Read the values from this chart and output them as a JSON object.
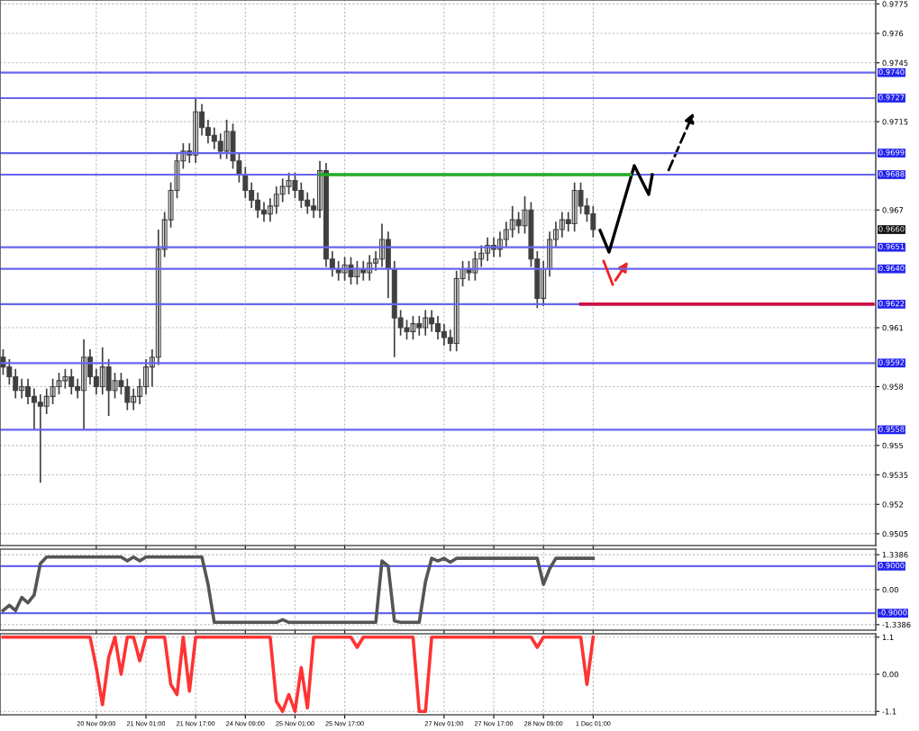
{
  "chart_data": [
    {
      "type": "candlestick",
      "color": "#404040",
      "grid": true,
      "tick_labels": "y",
      "categories": [
        null,
        null,
        null,
        null,
        null,
        null,
        null,
        null,
        null,
        null,
        null,
        null,
        null,
        null,
        null,
        null,
        null,
        null,
        null,
        null,
        null,
        null,
        null,
        null,
        null,
        null,
        null,
        null,
        null,
        null,
        null,
        null,
        null,
        null,
        null,
        null,
        null,
        null,
        null,
        null,
        null,
        null,
        null,
        null,
        null,
        null,
        null,
        null,
        null,
        null,
        null,
        null,
        null,
        null,
        null,
        null,
        null,
        null,
        null,
        null,
        null,
        null,
        null,
        null,
        null,
        null,
        null,
        null,
        null,
        null,
        null,
        null,
        null,
        null,
        null,
        null,
        null,
        null,
        null,
        null,
        null,
        null,
        null,
        null,
        null,
        null,
        null,
        null,
        null,
        null,
        null,
        null,
        null,
        null,
        null,
        null,
        null,
        null,
        null,
        null,
        null,
        null,
        null,
        null,
        null,
        null,
        null,
        null,
        null,
        null,
        null,
        null,
        null,
        null,
        null,
        null,
        null,
        null,
        null,
        null,
        null,
        null,
        null,
        null,
        null,
        null,
        null,
        null,
        null,
        null,
        null,
        null,
        null,
        null,
        null,
        null,
        null,
        null,
        null,
        null,
        null
      ],
      "ylim": [
        0.9499,
        0.9777
      ],
      "yticks": [
        0.9775,
        0.976,
        0.9745,
        0.9715,
        0.967,
        0.961,
        0.958,
        0.955,
        0.9535,
        0.952,
        0.9505
      ],
      "ohlc": [
        [
          0.9595,
          0.9599,
          0.9586,
          0.959
        ],
        [
          0.959,
          0.9594,
          0.9581,
          0.9585
        ],
        [
          0.9585,
          0.9589,
          0.9574,
          0.9578
        ],
        [
          0.9578,
          0.9584,
          0.9574,
          0.958
        ],
        [
          0.958,
          0.9584,
          0.9571,
          0.9575
        ],
        [
          0.9575,
          0.9579,
          0.9558,
          0.9572
        ],
        [
          0.9572,
          0.9576,
          0.9531,
          0.957
        ],
        [
          0.957,
          0.9579,
          0.9566,
          0.9575
        ],
        [
          0.9575,
          0.9584,
          0.9571,
          0.958
        ],
        [
          0.958,
          0.9587,
          0.9576,
          0.9583
        ],
        [
          0.9583,
          0.9589,
          0.9579,
          0.9585
        ],
        [
          0.9585,
          0.9589,
          0.9576,
          0.958
        ],
        [
          0.958,
          0.9584,
          0.9574,
          0.9578
        ],
        [
          0.9578,
          0.9604,
          0.9558,
          0.9595
        ],
        [
          0.9595,
          0.9599,
          0.9581,
          0.9585
        ],
        [
          0.9585,
          0.9589,
          0.9576,
          0.958
        ],
        [
          0.958,
          0.96,
          0.9576,
          0.959
        ],
        [
          0.959,
          0.9594,
          0.9565,
          0.9578
        ],
        [
          0.9578,
          0.9587,
          0.9574,
          0.9583
        ],
        [
          0.9583,
          0.9587,
          0.9576,
          0.958
        ],
        [
          0.958,
          0.9584,
          0.9568,
          0.9572
        ],
        [
          0.9572,
          0.9579,
          0.9568,
          0.9575
        ],
        [
          0.9575,
          0.9584,
          0.9571,
          0.958
        ],
        [
          0.958,
          0.9594,
          0.9576,
          0.959
        ],
        [
          0.959,
          0.9599,
          0.958,
          0.9595
        ],
        [
          0.9595,
          0.966,
          0.9591,
          0.965
        ],
        [
          0.965,
          0.9669,
          0.9646,
          0.9665
        ],
        [
          0.9665,
          0.9684,
          0.9661,
          0.968
        ],
        [
          0.968,
          0.9699,
          0.9676,
          0.9695
        ],
        [
          0.9695,
          0.9704,
          0.9691,
          0.97
        ],
        [
          0.97,
          0.9704,
          0.9694,
          0.9698
        ],
        [
          0.9698,
          0.9727,
          0.9694,
          0.972
        ],
        [
          0.972,
          0.9724,
          0.9708,
          0.9712
        ],
        [
          0.9712,
          0.9716,
          0.9704,
          0.9708
        ],
        [
          0.9708,
          0.9712,
          0.9701,
          0.9705
        ],
        [
          0.9705,
          0.9709,
          0.9696,
          0.97
        ],
        [
          0.97,
          0.9716,
          0.9696,
          0.971
        ],
        [
          0.971,
          0.9714,
          0.9691,
          0.9695
        ],
        [
          0.9695,
          0.9699,
          0.9684,
          0.9688
        ],
        [
          0.9688,
          0.9692,
          0.9676,
          0.968
        ],
        [
          0.968,
          0.9684,
          0.9671,
          0.9675
        ],
        [
          0.9675,
          0.9679,
          0.9666,
          0.967
        ],
        [
          0.967,
          0.9674,
          0.9664,
          0.9668
        ],
        [
          0.9668,
          0.9676,
          0.9664,
          0.9672
        ],
        [
          0.9672,
          0.9682,
          0.9668,
          0.9678
        ],
        [
          0.9678,
          0.9686,
          0.9674,
          0.9682
        ],
        [
          0.9682,
          0.9689,
          0.9678,
          0.9685
        ],
        [
          0.9685,
          0.9689,
          0.9676,
          0.968
        ],
        [
          0.968,
          0.9684,
          0.9671,
          0.9675
        ],
        [
          0.9675,
          0.9679,
          0.9668,
          0.9672
        ],
        [
          0.9672,
          0.9676,
          0.9666,
          0.967
        ],
        [
          0.967,
          0.9695,
          0.9666,
          0.969
        ],
        [
          0.969,
          0.9694,
          0.9641,
          0.9645
        ],
        [
          0.9645,
          0.9649,
          0.9636,
          0.964
        ],
        [
          0.964,
          0.9644,
          0.9634,
          0.9638
        ],
        [
          0.9638,
          0.9646,
          0.9634,
          0.9642
        ],
        [
          0.9642,
          0.9646,
          0.9632,
          0.9636
        ],
        [
          0.9636,
          0.9644,
          0.9632,
          0.964
        ],
        [
          0.964,
          0.9644,
          0.9634,
          0.9638
        ],
        [
          0.9638,
          0.9647,
          0.9634,
          0.9643
        ],
        [
          0.9643,
          0.9649,
          0.9639,
          0.9645
        ],
        [
          0.9645,
          0.9663,
          0.9641,
          0.9655
        ],
        [
          0.9655,
          0.9659,
          0.9625,
          0.964
        ],
        [
          0.964,
          0.9644,
          0.9595,
          0.9615
        ],
        [
          0.9615,
          0.9619,
          0.9606,
          0.961
        ],
        [
          0.961,
          0.9614,
          0.9604,
          0.9608
        ],
        [
          0.9608,
          0.9616,
          0.9604,
          0.9612
        ],
        [
          0.9612,
          0.9616,
          0.9606,
          0.961
        ],
        [
          0.961,
          0.9619,
          0.9606,
          0.9615
        ],
        [
          0.9615,
          0.9619,
          0.9608,
          0.9612
        ],
        [
          0.9612,
          0.9616,
          0.9604,
          0.9608
        ],
        [
          0.9608,
          0.9612,
          0.9601,
          0.9605
        ],
        [
          0.9605,
          0.9609,
          0.9598,
          0.9602
        ],
        [
          0.9602,
          0.9639,
          0.9598,
          0.9635
        ],
        [
          0.9635,
          0.9644,
          0.9631,
          0.964
        ],
        [
          0.964,
          0.9644,
          0.9634,
          0.9638
        ],
        [
          0.9638,
          0.9649,
          0.9634,
          0.9645
        ],
        [
          0.9645,
          0.9652,
          0.9641,
          0.9648
        ],
        [
          0.9648,
          0.9656,
          0.9644,
          0.9652
        ],
        [
          0.9652,
          0.9656,
          0.9646,
          0.965
        ],
        [
          0.965,
          0.9659,
          0.9646,
          0.9655
        ],
        [
          0.9655,
          0.9664,
          0.9651,
          0.966
        ],
        [
          0.966,
          0.9672,
          0.9656,
          0.9665
        ],
        [
          0.9665,
          0.9669,
          0.9658,
          0.9662
        ],
        [
          0.9662,
          0.9677,
          0.9658,
          0.967
        ],
        [
          0.967,
          0.9674,
          0.9641,
          0.9645
        ],
        [
          0.9645,
          0.9649,
          0.962,
          0.9625
        ],
        [
          0.9625,
          0.9644,
          0.9621,
          0.964
        ],
        [
          0.964,
          0.9659,
          0.9636,
          0.9655
        ],
        [
          0.9655,
          0.9664,
          0.9651,
          0.966
        ],
        [
          0.966,
          0.9669,
          0.9656,
          0.9665
        ],
        [
          0.9665,
          0.9669,
          0.9659,
          0.9663
        ],
        [
          0.9663,
          0.9684,
          0.9659,
          0.968
        ],
        [
          0.968,
          0.9684,
          0.9668,
          0.9672
        ],
        [
          0.9672,
          0.9676,
          0.9664,
          0.9668
        ],
        [
          0.9668,
          0.9672,
          0.9656,
          0.966
        ],
        null,
        null,
        null,
        null,
        null,
        null,
        null,
        null,
        null,
        null,
        null,
        null,
        null,
        null,
        null,
        null,
        null,
        null,
        null,
        null,
        null,
        null,
        null,
        null,
        null,
        null,
        null,
        null,
        null,
        null,
        null,
        null,
        null,
        null,
        null,
        null,
        null,
        null,
        null,
        null,
        null,
        null,
        null,
        null,
        null
      ],
      "series": [
        {
          "type": "line",
          "color": "#22aa22",
          "values": [
            null,
            null,
            null,
            null,
            null,
            null,
            null,
            null,
            null,
            null,
            null,
            null,
            null,
            null,
            null,
            null,
            null,
            null,
            null,
            null,
            null,
            null,
            null,
            null,
            null,
            null,
            null,
            null,
            null,
            null,
            null,
            null,
            null,
            null,
            null,
            null,
            null,
            null,
            null,
            null,
            null,
            null,
            null,
            null,
            null,
            null,
            null,
            null,
            null,
            null,
            null,
            0.9688,
            0.9688,
            0.9688,
            0.9688,
            0.9688,
            0.9688,
            0.9688,
            0.9688,
            0.9688,
            0.9688,
            0.9688,
            0.9688,
            0.9688,
            0.9688,
            0.9688,
            0.9688,
            0.9688,
            0.9688,
            0.9688,
            0.9688,
            0.9688,
            0.9688,
            0.9688,
            0.9688,
            0.9688,
            0.9688,
            0.9688,
            0.9688,
            0.9688,
            0.9688,
            0.9688,
            0.9688,
            0.9688,
            0.9688,
            0.9688,
            0.9688,
            0.9688,
            0.9688,
            0.9688,
            0.9688,
            0.9688,
            0.9688,
            0.9688,
            0.9688,
            0.9688,
            0.9688,
            0.9688,
            0.9688,
            0.9688,
            0.9688,
            0.9688,
            null,
            null,
            null,
            null,
            null,
            null,
            null,
            null,
            null,
            null,
            null,
            null,
            null,
            null,
            null,
            null,
            null,
            null,
            null,
            null,
            null,
            null,
            null,
            null,
            null,
            null,
            null,
            null,
            null,
            null,
            null,
            null,
            null,
            null,
            null,
            null,
            null,
            null,
            null
          ]
        },
        {
          "type": "line",
          "color": "#cc1144",
          "values": [
            null,
            null,
            null,
            null,
            null,
            null,
            null,
            null,
            null,
            null,
            null,
            null,
            null,
            null,
            null,
            null,
            null,
            null,
            null,
            null,
            null,
            null,
            null,
            null,
            null,
            null,
            null,
            null,
            null,
            null,
            null,
            null,
            null,
            null,
            null,
            null,
            null,
            null,
            null,
            null,
            null,
            null,
            null,
            null,
            null,
            null,
            null,
            null,
            null,
            null,
            null,
            null,
            null,
            null,
            null,
            null,
            null,
            null,
            null,
            null,
            null,
            null,
            null,
            null,
            null,
            null,
            null,
            null,
            null,
            null,
            null,
            null,
            null,
            null,
            null,
            null,
            null,
            null,
            null,
            null,
            null,
            null,
            null,
            null,
            null,
            null,
            null,
            null,
            null,
            null,
            null,
            null,
            null,
            0.9622,
            0.9622,
            0.9622,
            0.9622,
            0.9622,
            0.9622,
            0.9622,
            0.9622,
            0.9622,
            0.9622,
            0.9622,
            0.9622,
            0.9622,
            0.9622,
            0.9622,
            0.9622,
            0.9622,
            0.9622,
            0.9622,
            0.9622,
            0.9622,
            0.9622,
            0.9622,
            0.9622,
            0.9622,
            0.9622,
            0.9622,
            0.9622,
            0.9622,
            0.9622,
            0.9622,
            0.9622,
            0.9622,
            0.9622,
            0.9622,
            0.9622,
            0.9622,
            0.9622,
            0.9622,
            0.9622,
            0.9622,
            0.9622,
            0.9622,
            0.9622,
            0.9622,
            0.9622,
            0.9622,
            0.9622
          ]
        }
      ],
      "ref_lines": [
        {
          "axis": "y",
          "value": 0.974,
          "label": "0.9740",
          "color": "#6666ee"
        },
        {
          "axis": "y",
          "value": 0.9727,
          "label": "0.9727",
          "color": "#6666ee"
        },
        {
          "axis": "y",
          "value": 0.9699,
          "label": "0.9699",
          "color": "#6666ee"
        },
        {
          "axis": "y",
          "value": 0.9688,
          "label": "0.9688",
          "color": "#6666ee"
        },
        {
          "axis": "y",
          "value": 0.9651,
          "label": "0.9651",
          "color": "#6666ee"
        },
        {
          "axis": "y",
          "value": 0.964,
          "label": "0.9640",
          "color": "#6666ee"
        },
        {
          "axis": "y",
          "value": 0.9622,
          "label": "0.9622",
          "color": "#6666ee"
        },
        {
          "axis": "y",
          "value": 0.9592,
          "label": "0.9592",
          "color": "#6666ee"
        },
        {
          "axis": "y",
          "value": 0.9558,
          "label": "0.9558",
          "color": "#6666ee"
        }
      ],
      "annotations": [
        {
          "text": "0.9660",
          "y": 0.966
        }
      ]
    },
    {
      "type": "line",
      "color": "#555555",
      "grid": true,
      "tick_labels": "y",
      "categories": [
        null,
        null,
        null,
        null,
        null,
        null,
        null,
        null,
        null,
        null,
        null,
        null,
        null,
        null,
        null,
        null,
        null,
        null,
        null,
        null,
        null,
        null,
        null,
        null,
        null,
        null,
        null,
        null,
        null,
        null,
        null,
        null,
        null,
        null,
        null,
        null,
        null,
        null,
        null,
        null,
        null,
        null,
        null,
        null,
        null,
        null,
        null,
        null,
        null,
        null,
        null,
        null,
        null,
        null,
        null,
        null,
        null,
        null,
        null,
        null,
        null,
        null,
        null,
        null,
        null,
        null,
        null,
        null,
        null,
        null,
        null,
        null,
        null,
        null,
        null,
        null,
        null,
        null,
        null,
        null,
        null,
        null,
        null,
        null,
        null,
        null,
        null,
        null,
        null,
        null,
        null,
        null,
        null,
        null,
        null,
        null,
        null,
        null,
        null,
        null,
        null,
        null,
        null,
        null,
        null,
        null,
        null,
        null,
        null,
        null,
        null,
        null,
        null,
        null,
        null,
        null,
        null,
        null,
        null,
        null,
        null,
        null,
        null,
        null,
        null,
        null,
        null,
        null,
        null,
        null,
        null,
        null,
        null,
        null,
        null,
        null,
        null,
        null,
        null,
        null,
        null
      ],
      "ylim": [
        -1.55,
        1.55
      ],
      "yticks": [
        1.3386,
        {
          "value": 0,
          "label": "0.00"
        },
        -1.3386
      ],
      "values": [
        -0.8,
        -0.6,
        -0.8,
        -0.3,
        -0.5,
        -0.2,
        1.0,
        1.25,
        1.25,
        1.25,
        1.25,
        1.25,
        1.25,
        1.25,
        1.25,
        1.25,
        1.25,
        1.25,
        1.25,
        1.25,
        1.1,
        1.25,
        1.1,
        1.25,
        1.25,
        1.25,
        1.25,
        1.25,
        1.25,
        1.25,
        1.25,
        1.25,
        1.25,
        0.2,
        -1.25,
        -1.25,
        -1.25,
        -1.25,
        -1.25,
        -1.25,
        -1.25,
        -1.25,
        -1.25,
        -1.25,
        -1.25,
        -1.15,
        -1.25,
        -1.25,
        -1.25,
        -1.25,
        -1.25,
        -1.25,
        -1.25,
        -1.25,
        -1.25,
        -1.25,
        -1.25,
        -1.25,
        -1.25,
        -1.25,
        -1.25,
        1.1,
        0.9,
        -1.2,
        -1.25,
        -1.25,
        -1.25,
        -1.25,
        0.3,
        1.2,
        1.1,
        1.2,
        1.05,
        1.2,
        1.2,
        1.2,
        1.2,
        1.2,
        1.2,
        1.2,
        1.2,
        1.2,
        1.2,
        1.2,
        1.2,
        1.2,
        1.2,
        0.2,
        0.8,
        1.2,
        1.2,
        1.2,
        1.2,
        1.2,
        1.2,
        1.2,
        null,
        null,
        null,
        null,
        null,
        null,
        null,
        null,
        null,
        null,
        null,
        null,
        null,
        null,
        null,
        null,
        null,
        null,
        null,
        null,
        null,
        null,
        null,
        null,
        null,
        null,
        null,
        null,
        null,
        null,
        null,
        null,
        null,
        null,
        null,
        null,
        null,
        null,
        null,
        null,
        null,
        null,
        null,
        null,
        null
      ],
      "ref_lines": [
        {
          "axis": "y",
          "value": 0.9,
          "label": "0.9000",
          "color": "#6666ee"
        },
        {
          "axis": "y",
          "value": -0.9,
          "label": "-0.9000",
          "color": "#6666ee"
        }
      ]
    },
    {
      "type": "line",
      "color": "#ff3333",
      "grid": true,
      "categories": [
        null,
        null,
        null,
        null,
        null,
        null,
        null,
        null,
        null,
        null,
        null,
        null,
        null,
        null,
        null,
        "20 Nov 09:00",
        null,
        null,
        null,
        null,
        null,
        null,
        null,
        "21 Nov 01:00",
        null,
        null,
        null,
        null,
        null,
        null,
        null,
        "21 Nov 17:00",
        null,
        null,
        null,
        null,
        null,
        null,
        null,
        "24 Nov 09:00",
        null,
        null,
        null,
        null,
        null,
        null,
        null,
        "25 Nov 01:00",
        null,
        null,
        null,
        null,
        null,
        null,
        null,
        "25 Nov 17:00",
        null,
        null,
        null,
        null,
        null,
        null,
        null,
        null,
        null,
        null,
        null,
        null,
        null,
        null,
        null,
        "27 Nov 01:00",
        null,
        null,
        null,
        null,
        null,
        null,
        null,
        "27 Nov 17:00",
        null,
        null,
        null,
        null,
        null,
        null,
        null,
        "28 Nov 09:00",
        null,
        null,
        null,
        null,
        null,
        null,
        null,
        "1 Dec 01:00",
        null,
        null,
        null,
        null,
        null,
        null,
        null,
        null,
        null,
        null,
        null,
        null,
        null,
        null,
        null,
        null,
        null,
        null,
        null,
        null,
        null,
        null,
        null,
        null,
        null,
        null,
        null,
        null,
        null,
        null,
        null,
        null,
        null,
        null,
        null,
        null,
        null,
        null,
        null,
        null,
        null,
        null,
        null,
        null,
        null
      ],
      "ylim": [
        -1.2,
        1.2
      ],
      "yticks": [
        1.1,
        {
          "value": 0,
          "label": "0.00"
        },
        -1.1
      ],
      "values": [
        1.1,
        1.1,
        1.1,
        1.1,
        1.1,
        1.1,
        1.1,
        1.1,
        1.1,
        1.1,
        1.1,
        1.1,
        1.1,
        1.1,
        1.1,
        0.2,
        -0.9,
        0.5,
        1.1,
        0.0,
        1.1,
        1.1,
        0.4,
        1.1,
        1.1,
        1.1,
        1.1,
        -0.3,
        -0.6,
        1.1,
        -0.5,
        1.1,
        1.1,
        1.1,
        1.1,
        1.1,
        1.1,
        1.1,
        1.1,
        1.1,
        1.1,
        1.1,
        1.1,
        1.1,
        -0.8,
        -1.1,
        -0.6,
        -1.1,
        0.2,
        -1.0,
        1.1,
        1.1,
        1.1,
        1.1,
        1.1,
        1.1,
        1.1,
        0.8,
        1.1,
        1.1,
        1.1,
        1.1,
        1.1,
        1.1,
        1.1,
        1.1,
        1.1,
        -1.1,
        -1.1,
        1.1,
        1.1,
        1.1,
        1.1,
        1.1,
        1.1,
        1.1,
        1.1,
        1.1,
        1.1,
        1.1,
        1.1,
        1.1,
        1.1,
        1.1,
        1.1,
        1.1,
        0.8,
        1.1,
        1.1,
        1.1,
        1.1,
        1.1,
        1.1,
        1.1,
        -0.3,
        1.1,
        null,
        null,
        null,
        null,
        null,
        null,
        null,
        null,
        null,
        null,
        null,
        null,
        null,
        null,
        null,
        null,
        null,
        null,
        null,
        null,
        null,
        null,
        null,
        null,
        null,
        null,
        null,
        null,
        null,
        null,
        null,
        null,
        null,
        null,
        null,
        null,
        null,
        null,
        null,
        null,
        null,
        null,
        null,
        null,
        null
      ]
    }
  ]
}
